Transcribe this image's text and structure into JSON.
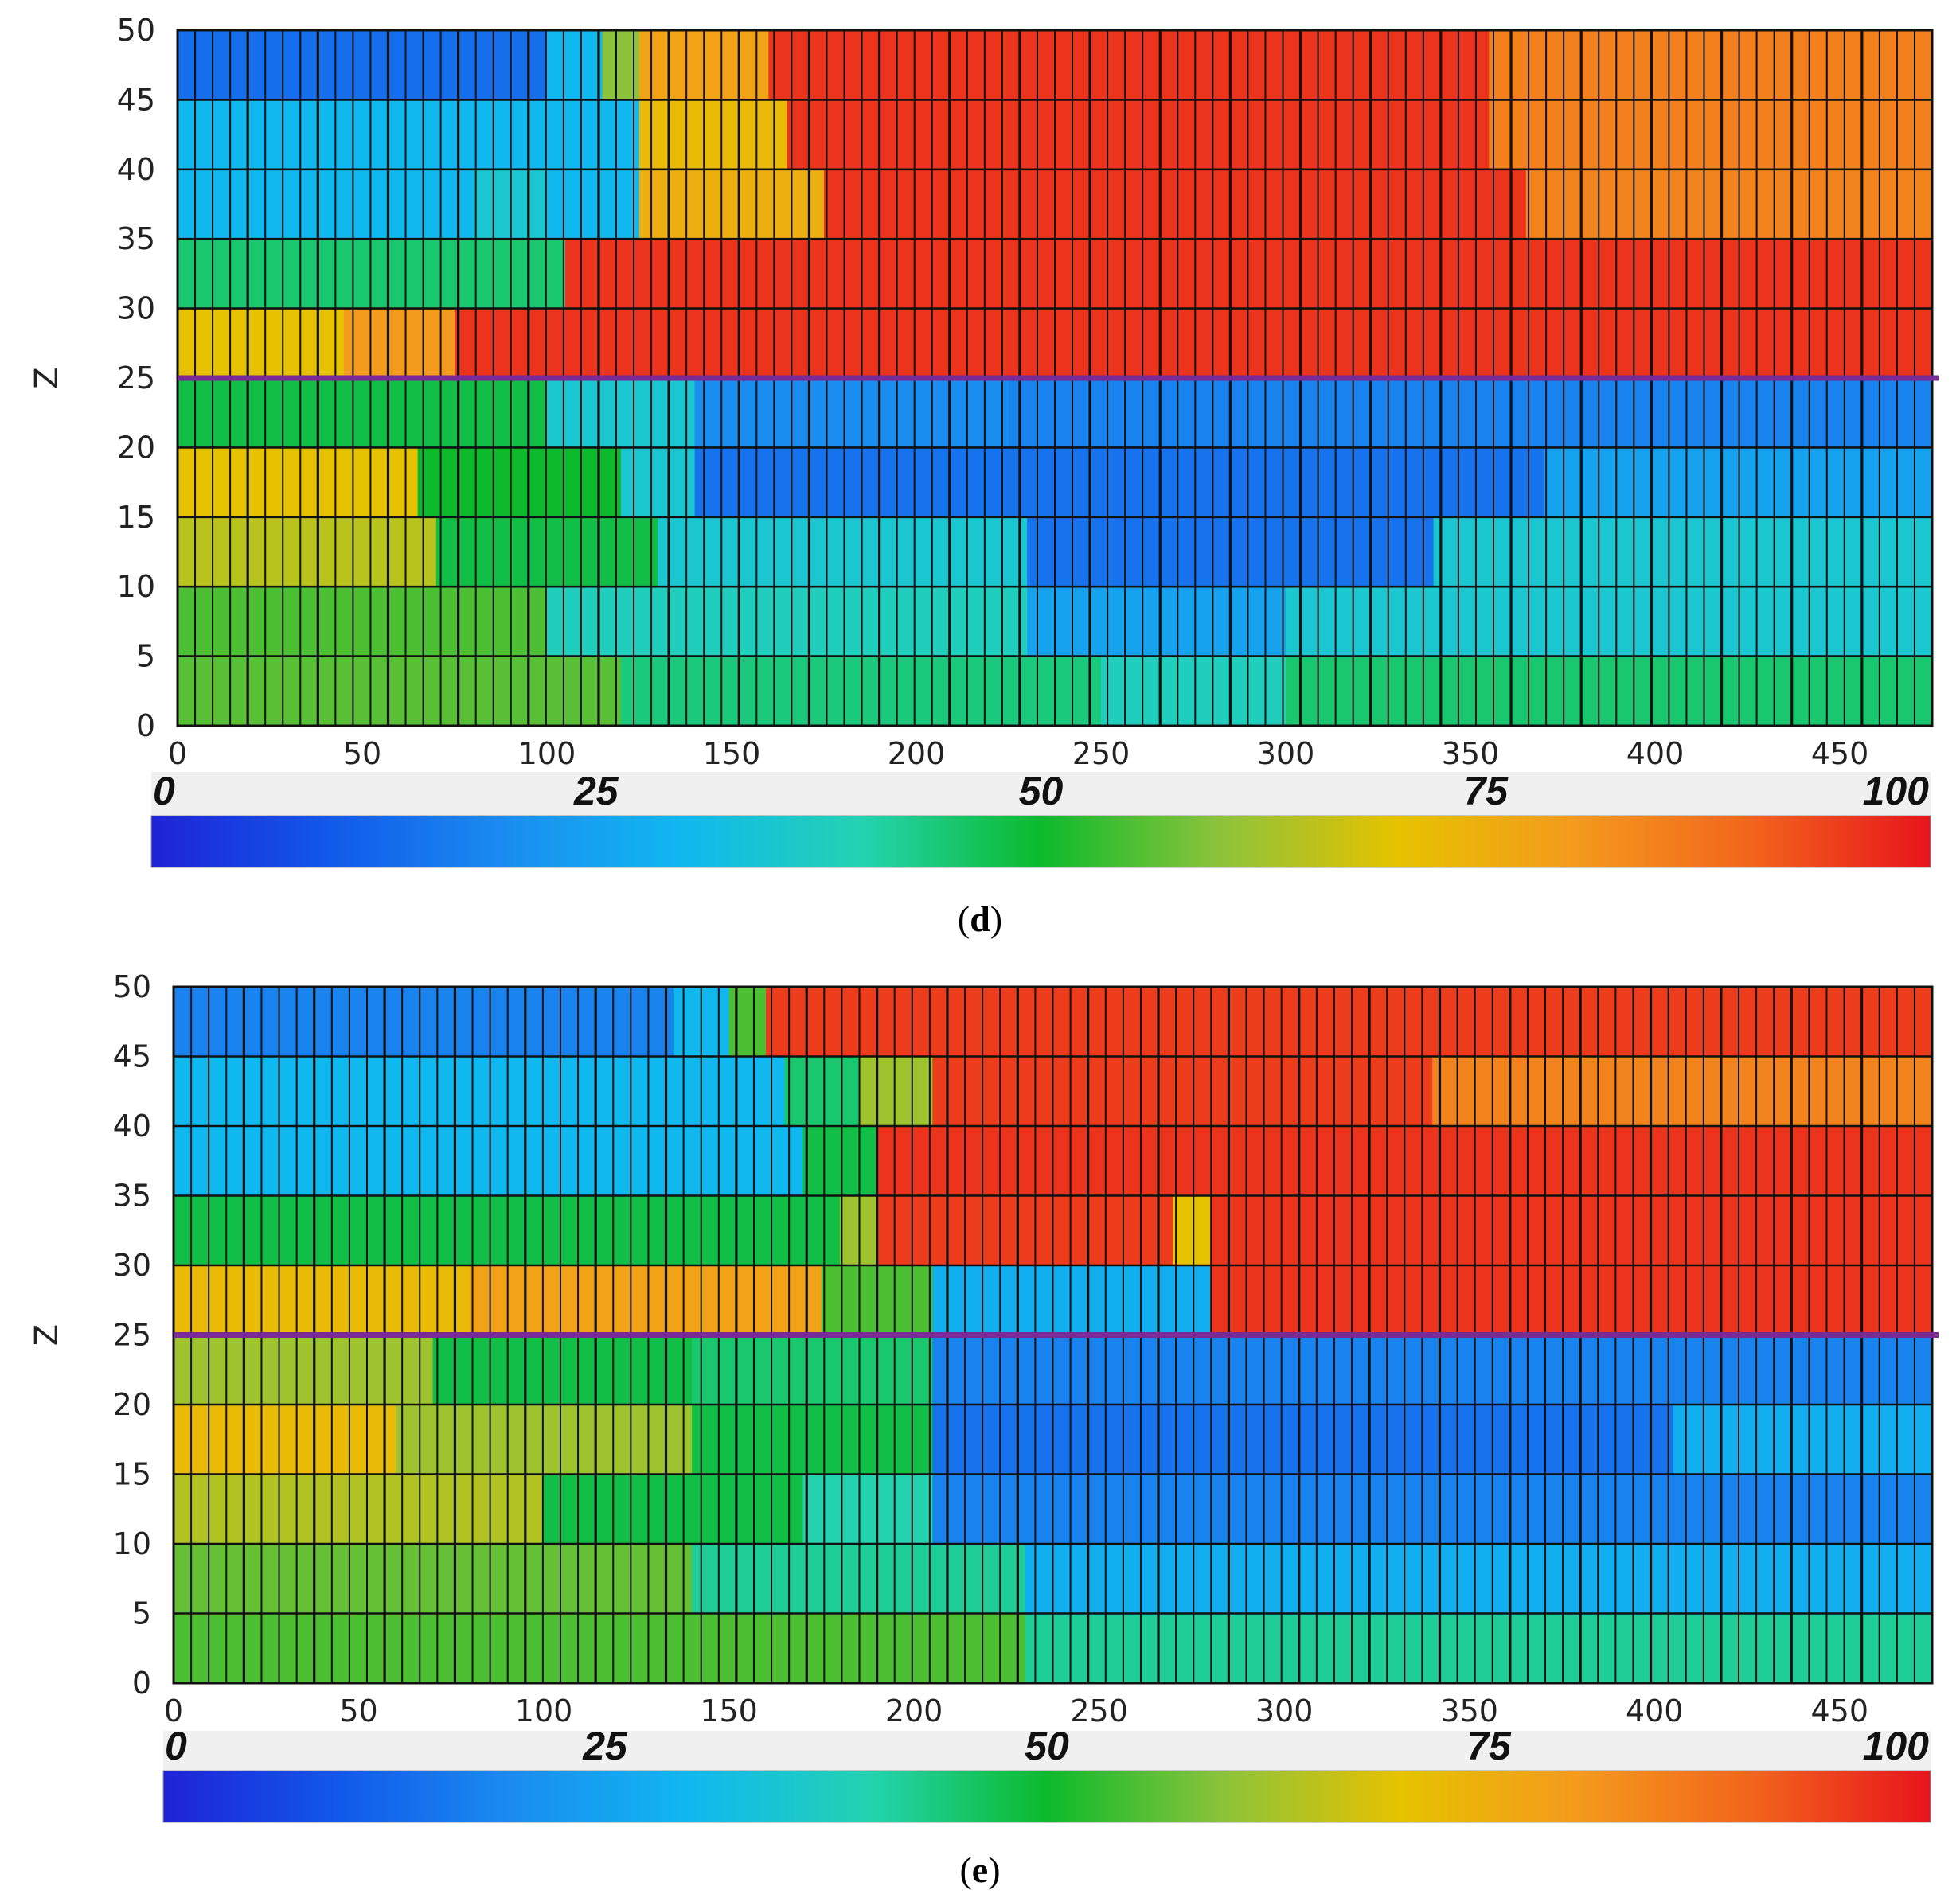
{
  "chart_data": [
    {
      "type": "heatmap",
      "panel": "d",
      "caption_letter": "d",
      "caption_open": "(",
      "caption_close": ")",
      "ylabel": "Z",
      "xlabel": "",
      "xlim": [
        0,
        475
      ],
      "ylim": [
        0,
        50
      ],
      "x_ticks": [
        "0",
        "50",
        "100",
        "150",
        "200",
        "250",
        "300",
        "350",
        "400",
        "450"
      ],
      "y_ticks": [
        "0",
        "5",
        "10",
        "15",
        "20",
        "25",
        "30",
        "35",
        "40",
        "45",
        "50"
      ],
      "reference_line_z": 25,
      "reference_line_color": "#7a2a96",
      "colorbar": {
        "range": [
          0,
          100
        ],
        "labels": [
          "0",
          "25",
          "50",
          "75",
          "100"
        ]
      },
      "rows": [
        {
          "z": [
            45,
            50
          ],
          "segments": [
            [
              0,
              100,
              14
            ],
            [
              100,
              115,
              30
            ],
            [
              115,
              125,
              60
            ],
            [
              125,
              160,
              78
            ],
            [
              160,
              355,
              96
            ],
            [
              355,
              475,
              85
            ]
          ]
        },
        {
          "z": [
            40,
            45
          ],
          "segments": [
            [
              0,
              125,
              30
            ],
            [
              125,
              165,
              72
            ],
            [
              165,
              355,
              96
            ],
            [
              355,
              475,
              85
            ]
          ]
        },
        {
          "z": [
            35,
            40
          ],
          "segments": [
            [
              0,
              80,
              30
            ],
            [
              80,
              100,
              35
            ],
            [
              100,
              125,
              30
            ],
            [
              125,
              175,
              75
            ],
            [
              175,
              365,
              96
            ],
            [
              365,
              475,
              84
            ]
          ]
        },
        {
          "z": [
            30,
            35
          ],
          "segments": [
            [
              0,
              105,
              45
            ],
            [
              105,
              475,
              96
            ]
          ]
        },
        {
          "z": [
            25,
            30
          ],
          "segments": [
            [
              0,
              45,
              70
            ],
            [
              45,
              75,
              80
            ],
            [
              75,
              475,
              96
            ]
          ]
        },
        {
          "z": [
            20,
            25
          ],
          "segments": [
            [
              0,
              100,
              48
            ],
            [
              100,
              140,
              35
            ],
            [
              140,
              225,
              20
            ],
            [
              225,
              475,
              18
            ]
          ]
        },
        {
          "z": [
            15,
            20
          ],
          "segments": [
            [
              0,
              65,
              70
            ],
            [
              65,
              120,
              50
            ],
            [
              120,
              140,
              35
            ],
            [
              140,
              370,
              15
            ],
            [
              370,
              475,
              25
            ]
          ]
        },
        {
          "z": [
            10,
            15
          ],
          "segments": [
            [
              0,
              70,
              65
            ],
            [
              70,
              130,
              48
            ],
            [
              130,
              230,
              35
            ],
            [
              230,
              340,
              15
            ],
            [
              340,
              475,
              35
            ]
          ]
        },
        {
          "z": [
            5,
            10
          ],
          "segments": [
            [
              0,
              100,
              55
            ],
            [
              100,
              230,
              38
            ],
            [
              230,
              300,
              25
            ],
            [
              300,
              475,
              35
            ]
          ]
        },
        {
          "z": [
            0,
            5
          ],
          "segments": [
            [
              0,
              120,
              56
            ],
            [
              120,
              250,
              44
            ],
            [
              250,
              300,
              38
            ],
            [
              300,
              475,
              45
            ]
          ]
        }
      ]
    },
    {
      "type": "heatmap",
      "panel": "e",
      "caption_letter": "e",
      "caption_open": "(",
      "caption_close": ")",
      "ylabel": "Z",
      "xlabel": "",
      "xlim": [
        0,
        475
      ],
      "ylim": [
        0,
        50
      ],
      "x_ticks": [
        "0",
        "50",
        "100",
        "150",
        "200",
        "250",
        "300",
        "350",
        "400",
        "450"
      ],
      "y_ticks": [
        "0",
        "5",
        "10",
        "15",
        "20",
        "25",
        "30",
        "35",
        "40",
        "45",
        "50"
      ],
      "reference_line_z": 25,
      "reference_line_color": "#7a2a96",
      "colorbar": {
        "range": [
          0,
          100
        ],
        "labels": [
          "0",
          "25",
          "50",
          "75",
          "100"
        ]
      },
      "rows": [
        {
          "z": [
            45,
            50
          ],
          "segments": [
            [
              0,
              135,
              18
            ],
            [
              135,
              150,
              30
            ],
            [
              150,
              160,
              55
            ],
            [
              160,
              475,
              95
            ]
          ]
        },
        {
          "z": [
            40,
            45
          ],
          "segments": [
            [
              0,
              165,
              30
            ],
            [
              165,
              185,
              45
            ],
            [
              185,
              205,
              62
            ],
            [
              205,
              340,
              95
            ],
            [
              340,
              475,
              84
            ]
          ]
        },
        {
          "z": [
            35,
            40
          ],
          "segments": [
            [
              0,
              170,
              30
            ],
            [
              170,
              190,
              48
            ],
            [
              190,
              475,
              96
            ]
          ]
        },
        {
          "z": [
            30,
            35
          ],
          "segments": [
            [
              0,
              180,
              48
            ],
            [
              180,
              190,
              62
            ],
            [
              190,
              270,
              95
            ],
            [
              270,
              280,
              70
            ],
            [
              280,
              475,
              96
            ]
          ]
        },
        {
          "z": [
            25,
            30
          ],
          "segments": [
            [
              0,
              80,
              72
            ],
            [
              80,
              175,
              78
            ],
            [
              175,
              205,
              55
            ],
            [
              205,
              280,
              28
            ],
            [
              280,
              475,
              96
            ]
          ]
        },
        {
          "z": [
            20,
            25
          ],
          "segments": [
            [
              0,
              70,
              62
            ],
            [
              70,
              140,
              48
            ],
            [
              140,
              205,
              45
            ],
            [
              205,
              475,
              18
            ]
          ]
        },
        {
          "z": [
            15,
            20
          ],
          "segments": [
            [
              0,
              60,
              72
            ],
            [
              60,
              140,
              62
            ],
            [
              140,
              205,
              48
            ],
            [
              205,
              405,
              15
            ],
            [
              405,
              475,
              28
            ]
          ]
        },
        {
          "z": [
            10,
            15
          ],
          "segments": [
            [
              0,
              100,
              64
            ],
            [
              100,
              170,
              48
            ],
            [
              170,
              205,
              40
            ],
            [
              205,
              475,
              18
            ]
          ]
        },
        {
          "z": [
            5,
            10
          ],
          "segments": [
            [
              0,
              140,
              57
            ],
            [
              140,
              230,
              42
            ],
            [
              230,
              475,
              28
            ]
          ]
        },
        {
          "z": [
            0,
            5
          ],
          "segments": [
            [
              0,
              230,
              55
            ],
            [
              230,
              475,
              42
            ]
          ]
        }
      ]
    }
  ]
}
